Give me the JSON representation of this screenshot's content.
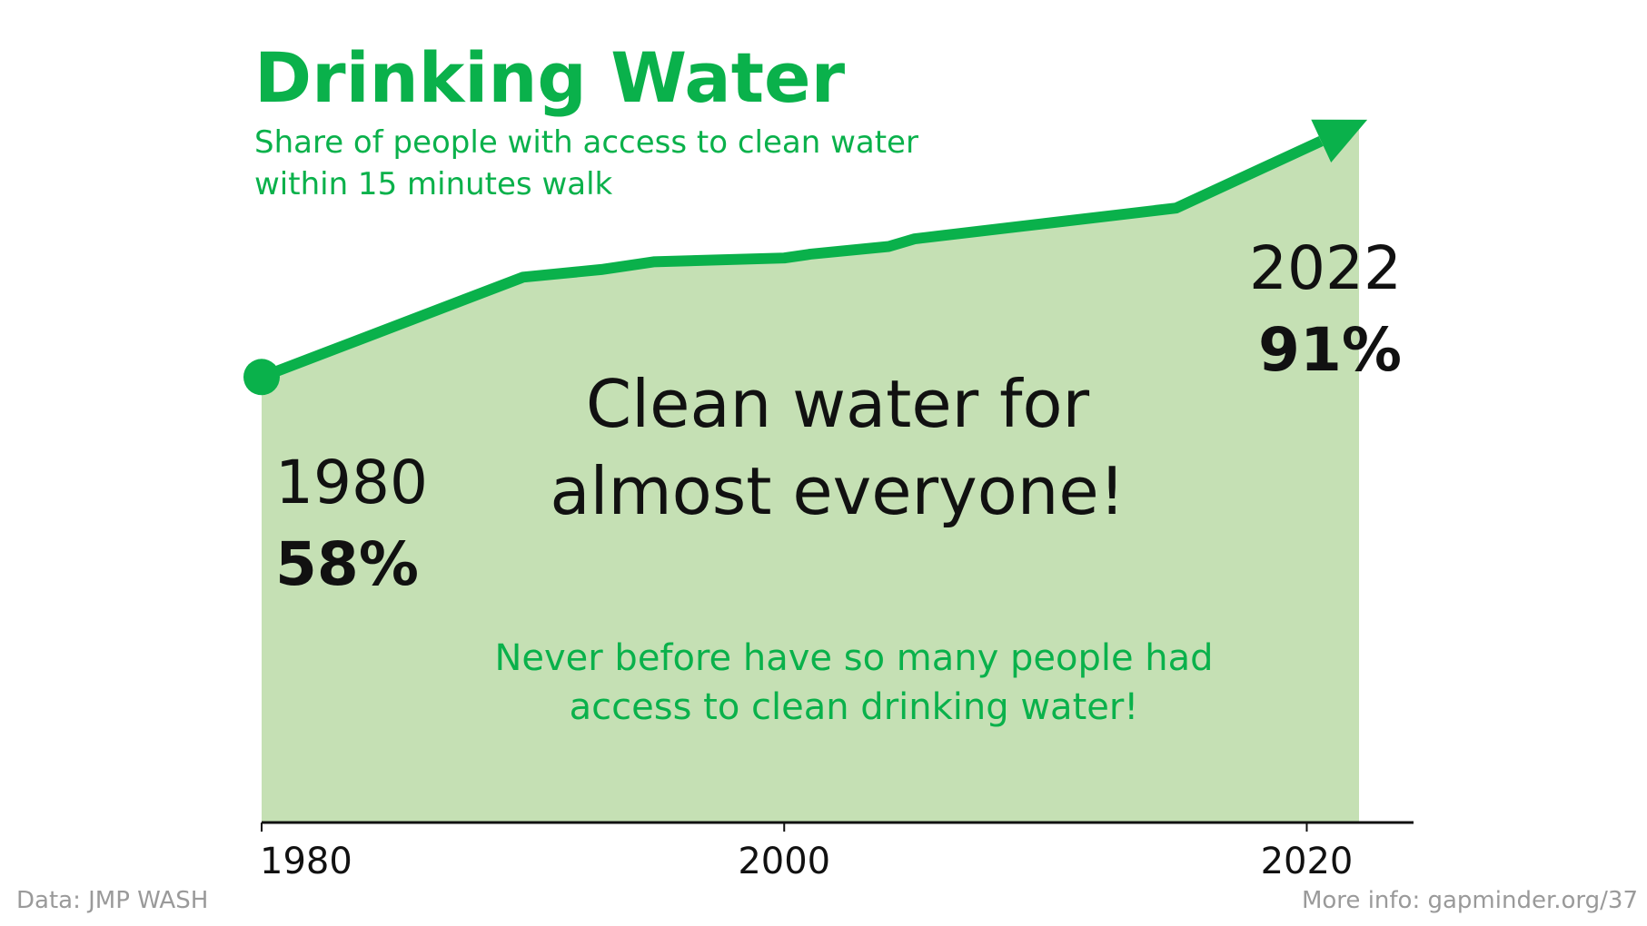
{
  "colors": {
    "accent": "#0ab14b",
    "area_fill": "#c5e0b4",
    "text": "#111111",
    "footer": "#9a9a9a"
  },
  "header": {
    "title": "Drinking Water",
    "subtitle_line1": "Share of people with access to clean water",
    "subtitle_line2": "within 15 minutes walk"
  },
  "annotations": {
    "start_year": "1980",
    "start_value": "58%",
    "end_year": "2022",
    "end_value": "91%",
    "headline_line1": "Clean water for",
    "headline_line2": "almost everyone!",
    "note_line1": "Never before have so many people had",
    "note_line2": "access to clean drinking water!"
  },
  "footer": {
    "source": "Data: JMP WASH",
    "more_info": "More info: gapminder.org/37"
  },
  "chart_data": {
    "type": "area",
    "title": "Drinking Water",
    "subtitle": "Share of people with access to clean water within 15 minutes walk",
    "x": [
      1980,
      1990,
      1993,
      1995,
      2000,
      2001,
      2004,
      2005,
      2010,
      2015,
      2022
    ],
    "series": [
      {
        "values": [
          58,
          71,
          72,
          73,
          73.5,
          74,
          75,
          76,
          78,
          80,
          91
        ]
      }
    ],
    "xlim": [
      1980,
      2022
    ],
    "ylim": [
      0,
      100
    ],
    "x_ticks": [
      "1980",
      "2000",
      "2020"
    ],
    "grid": false,
    "legend": "none"
  }
}
